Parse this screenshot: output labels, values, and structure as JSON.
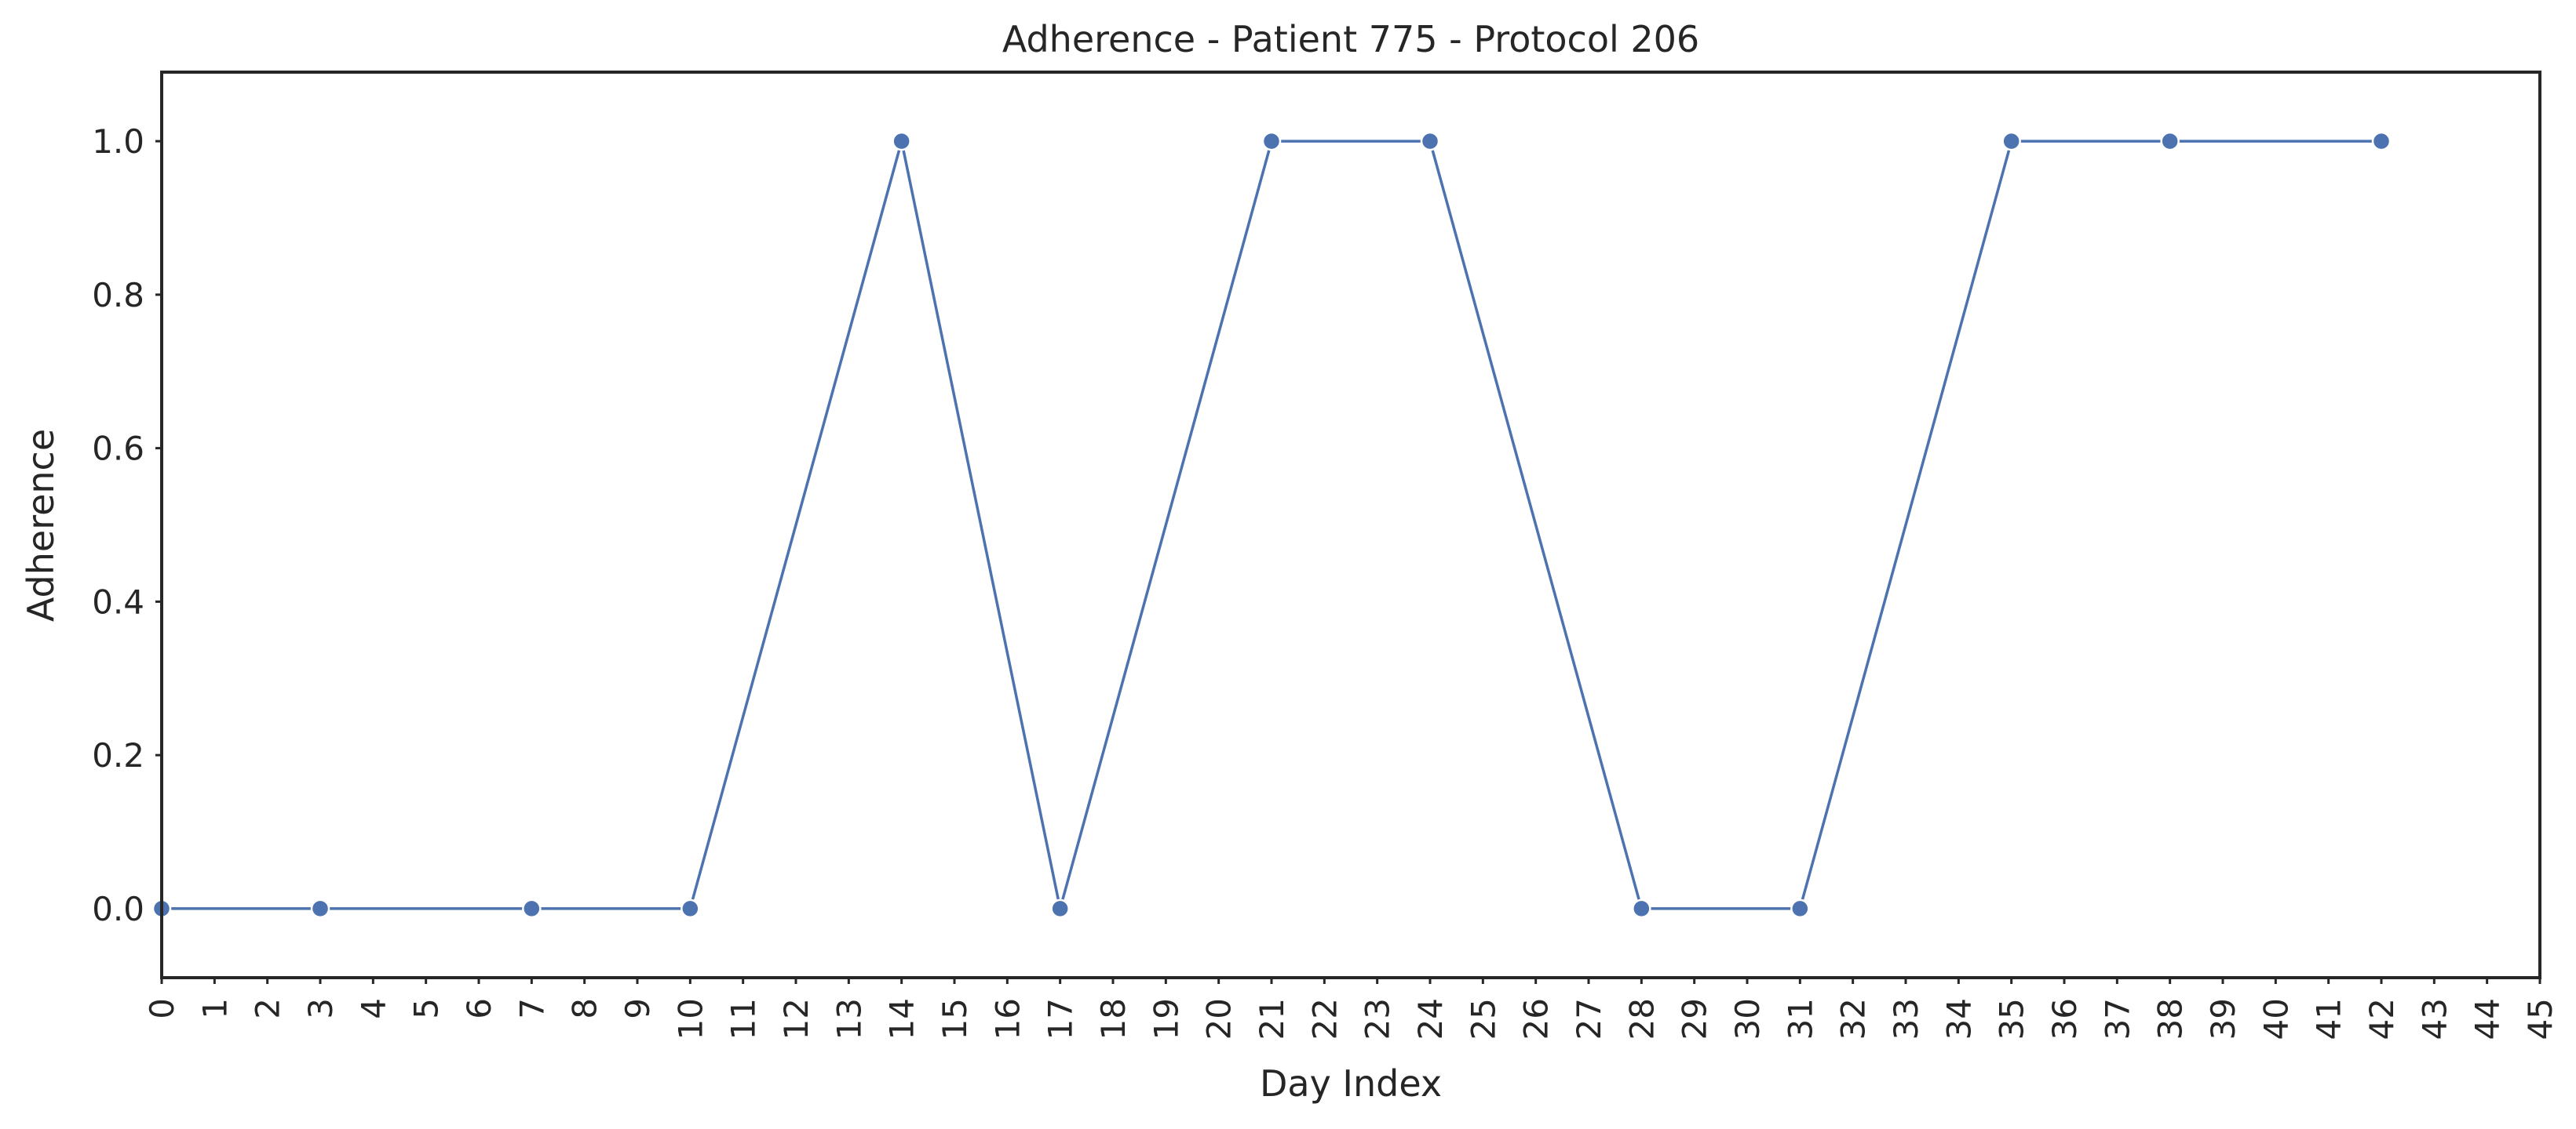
{
  "chart_data": {
    "type": "line",
    "title": "Adherence - Patient 775 - Protocol 206",
    "xlabel": "Day Index",
    "ylabel": "Adherence",
    "xlim": [
      0,
      45
    ],
    "ylim": [
      -0.09,
      1.09
    ],
    "x_ticks": [
      0,
      1,
      2,
      3,
      4,
      5,
      6,
      7,
      8,
      9,
      10,
      11,
      12,
      13,
      14,
      15,
      16,
      17,
      18,
      19,
      20,
      21,
      22,
      23,
      24,
      25,
      26,
      27,
      28,
      29,
      30,
      31,
      32,
      33,
      34,
      35,
      36,
      37,
      38,
      39,
      40,
      41,
      42,
      43,
      44,
      45
    ],
    "y_ticks": [
      "0.0",
      "0.2",
      "0.4",
      "0.6",
      "0.8",
      "1.0"
    ],
    "grid": false,
    "color": "#4c72b0",
    "series": [
      {
        "x": [
          0,
          3,
          7,
          10,
          14,
          17,
          21,
          24,
          28,
          31,
          35,
          38,
          42
        ],
        "y": [
          0,
          0,
          0,
          0,
          1,
          0,
          1,
          1,
          0,
          0,
          1,
          1,
          1
        ]
      }
    ]
  }
}
